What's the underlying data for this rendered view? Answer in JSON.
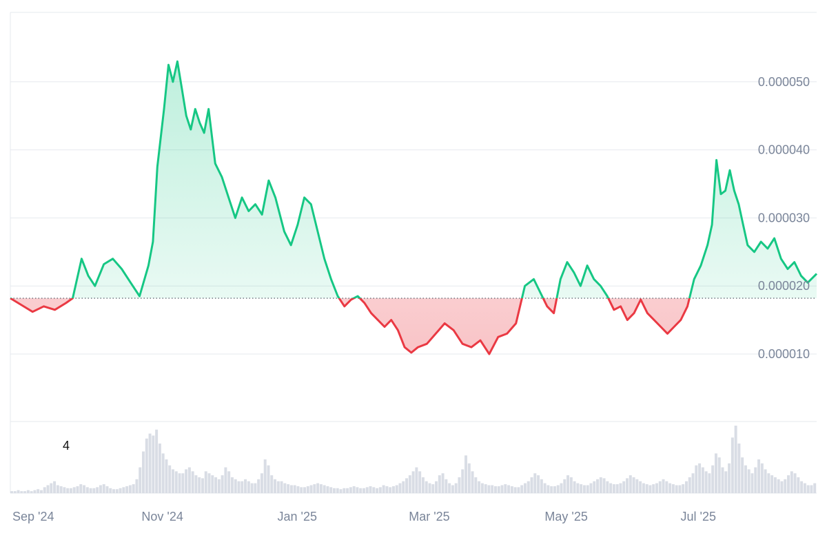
{
  "chart_data": {
    "type": "area",
    "title": "",
    "xlabel": "",
    "ylabel": "",
    "baseline": 1.82e-05,
    "ylim": [
      0.0,
      6e-05
    ],
    "y_ticks": [
      {
        "value": 1e-05,
        "label": "0.000010"
      },
      {
        "value": 2e-05,
        "label": "0.000020"
      },
      {
        "value": 3e-05,
        "label": "0.000030"
      },
      {
        "value": 4e-05,
        "label": "0.000040"
      },
      {
        "value": 5e-05,
        "label": "0.000050"
      }
    ],
    "x_ticks": [
      "Sep '24",
      "Nov '24",
      "Jan '25",
      "Mar '25",
      "May '25",
      "Jul '25"
    ],
    "x_tick_dates": [
      "2024-09-01",
      "2024-11-01",
      "2025-01-01",
      "2025-03-01",
      "2025-05-01",
      "2025-07-01"
    ],
    "date_range": [
      "2024-08-31",
      "2025-08-28"
    ],
    "series": [
      {
        "x": [
          "2024-08-31",
          "2024-09-05",
          "2024-09-10",
          "2024-09-15",
          "2024-09-20",
          "2024-09-25",
          "2024-09-28",
          "2024-10-02",
          "2024-10-05",
          "2024-10-08",
          "2024-10-12",
          "2024-10-16",
          "2024-10-20",
          "2024-10-24",
          "2024-10-28",
          "2024-11-01",
          "2024-11-03",
          "2024-11-05",
          "2024-11-08",
          "2024-11-10",
          "2024-11-12",
          "2024-11-14",
          "2024-11-16",
          "2024-11-18",
          "2024-11-20",
          "2024-11-22",
          "2024-11-24",
          "2024-11-26",
          "2024-11-28",
          "2024-12-01",
          "2024-12-04",
          "2024-12-07",
          "2024-12-10",
          "2024-12-13",
          "2024-12-16",
          "2024-12-19",
          "2024-12-22",
          "2024-12-25",
          "2024-12-28",
          "2025-01-01",
          "2025-01-04",
          "2025-01-07",
          "2025-01-10",
          "2025-01-13",
          "2025-01-16",
          "2025-01-19",
          "2025-01-22",
          "2025-01-25",
          "2025-01-28",
          "2025-01-31",
          "2025-02-03",
          "2025-02-06",
          "2025-02-09",
          "2025-02-12",
          "2025-02-15",
          "2025-02-18",
          "2025-02-21",
          "2025-02-24",
          "2025-02-27",
          "2025-03-02",
          "2025-03-06",
          "2025-03-10",
          "2025-03-14",
          "2025-03-18",
          "2025-03-22",
          "2025-03-26",
          "2025-03-30",
          "2025-04-03",
          "2025-04-07",
          "2025-04-11",
          "2025-04-15",
          "2025-04-19",
          "2025-04-23",
          "2025-04-26",
          "2025-04-29",
          "2025-05-02",
          "2025-05-05",
          "2025-05-08",
          "2025-05-11",
          "2025-05-14",
          "2025-05-17",
          "2025-05-20",
          "2025-05-23",
          "2025-05-26",
          "2025-05-29",
          "2025-06-01",
          "2025-06-04",
          "2025-06-07",
          "2025-06-10",
          "2025-06-13",
          "2025-06-16",
          "2025-06-19",
          "2025-06-22",
          "2025-06-25",
          "2025-06-28",
          "2025-07-01",
          "2025-07-04",
          "2025-07-07",
          "2025-07-10",
          "2025-07-12",
          "2025-07-14",
          "2025-07-16",
          "2025-07-18",
          "2025-07-20",
          "2025-07-22",
          "2025-07-24",
          "2025-07-26",
          "2025-07-28",
          "2025-07-31",
          "2025-08-03",
          "2025-08-06",
          "2025-08-09",
          "2025-08-12",
          "2025-08-15",
          "2025-08-18",
          "2025-08-21",
          "2025-08-24",
          "2025-08-28"
        ],
        "values": [
          1.82e-05,
          1.72e-05,
          1.62e-05,
          1.7e-05,
          1.65e-05,
          1.75e-05,
          1.82e-05,
          2.4e-05,
          2.15e-05,
          2e-05,
          2.32e-05,
          2.4e-05,
          2.25e-05,
          2.05e-05,
          1.85e-05,
          2.3e-05,
          2.65e-05,
          3.75e-05,
          4.6e-05,
          5.25e-05,
          5e-05,
          5.3e-05,
          4.9e-05,
          4.5e-05,
          4.3e-05,
          4.6e-05,
          4.4e-05,
          4.25e-05,
          4.6e-05,
          3.8e-05,
          3.6e-05,
          3.3e-05,
          3e-05,
          3.3e-05,
          3.1e-05,
          3.2e-05,
          3.05e-05,
          3.55e-05,
          3.3e-05,
          2.8e-05,
          2.6e-05,
          2.9e-05,
          3.3e-05,
          3.2e-05,
          2.8e-05,
          2.4e-05,
          2.1e-05,
          1.85e-05,
          1.7e-05,
          1.8e-05,
          1.85e-05,
          1.75e-05,
          1.6e-05,
          1.5e-05,
          1.4e-05,
          1.5e-05,
          1.35e-05,
          1.1e-05,
          1.02e-05,
          1.1e-05,
          1.15e-05,
          1.3e-05,
          1.45e-05,
          1.35e-05,
          1.15e-05,
          1.1e-05,
          1.2e-05,
          1e-05,
          1.25e-05,
          1.3e-05,
          1.45e-05,
          2e-05,
          2.1e-05,
          1.9e-05,
          1.7e-05,
          1.6e-05,
          2.1e-05,
          2.35e-05,
          2.2e-05,
          2e-05,
          2.3e-05,
          2.1e-05,
          2e-05,
          1.85e-05,
          1.65e-05,
          1.7e-05,
          1.5e-05,
          1.6e-05,
          1.8e-05,
          1.6e-05,
          1.5e-05,
          1.4e-05,
          1.3e-05,
          1.4e-05,
          1.5e-05,
          1.7e-05,
          2.1e-05,
          2.3e-05,
          2.6e-05,
          2.9e-05,
          3.85e-05,
          3.35e-05,
          3.4e-05,
          3.7e-05,
          3.4e-05,
          3.2e-05,
          2.9e-05,
          2.6e-05,
          2.5e-05,
          2.65e-05,
          2.55e-05,
          2.7e-05,
          2.4e-05,
          2.25e-05,
          2.35e-05,
          2.15e-05,
          2.05e-05,
          2.18e-05
        ]
      }
    ],
    "volume": [
      2,
      2,
      3,
      2,
      2,
      3,
      2,
      3,
      4,
      3,
      6,
      8,
      10,
      12,
      8,
      7,
      6,
      5,
      5,
      6,
      7,
      9,
      8,
      6,
      5,
      5,
      6,
      8,
      9,
      7,
      5,
      4,
      4,
      5,
      6,
      7,
      8,
      9,
      14,
      26,
      42,
      55,
      60,
      58,
      64,
      50,
      40,
      34,
      28,
      24,
      22,
      20,
      20,
      24,
      26,
      22,
      18,
      16,
      15,
      22,
      20,
      18,
      16,
      14,
      18,
      26,
      22,
      16,
      14,
      12,
      12,
      14,
      12,
      10,
      10,
      14,
      20,
      34,
      28,
      18,
      14,
      12,
      12,
      10,
      9,
      8,
      8,
      7,
      6,
      6,
      7,
      8,
      9,
      10,
      9,
      8,
      7,
      6,
      5,
      5,
      4,
      5,
      5,
      6,
      7,
      6,
      5,
      5,
      6,
      7,
      6,
      5,
      6,
      8,
      7,
      6,
      7,
      8,
      10,
      12,
      15,
      18,
      22,
      26,
      22,
      16,
      12,
      10,
      9,
      12,
      18,
      20,
      14,
      10,
      8,
      10,
      16,
      24,
      38,
      30,
      22,
      16,
      12,
      10,
      9,
      8,
      8,
      7,
      7,
      8,
      9,
      8,
      7,
      6,
      6,
      8,
      10,
      12,
      16,
      20,
      18,
      14,
      10,
      8,
      7,
      7,
      8,
      10,
      14,
      18,
      16,
      12,
      10,
      9,
      8,
      8,
      10,
      12,
      14,
      16,
      15,
      12,
      10,
      9,
      9,
      10,
      12,
      15,
      18,
      16,
      14,
      12,
      10,
      9,
      8,
      9,
      10,
      12,
      14,
      12,
      10,
      9,
      8,
      8,
      9,
      12,
      16,
      20,
      28,
      30,
      26,
      22,
      20,
      28,
      40,
      36,
      26,
      22,
      30,
      56,
      68,
      50,
      36,
      28,
      24,
      20,
      26,
      34,
      30,
      24,
      20,
      18,
      16,
      14,
      12,
      14,
      18,
      22,
      20,
      16,
      12,
      10,
      8,
      8,
      10
    ],
    "colors": {
      "up_line": "#16c784",
      "down_line": "#ea3943",
      "up_fill": "#16c784",
      "down_fill": "#ea3943",
      "grid": "#e6e9ee",
      "volume": "#d9dde5"
    },
    "corner_label": "4",
    "grid": true
  }
}
